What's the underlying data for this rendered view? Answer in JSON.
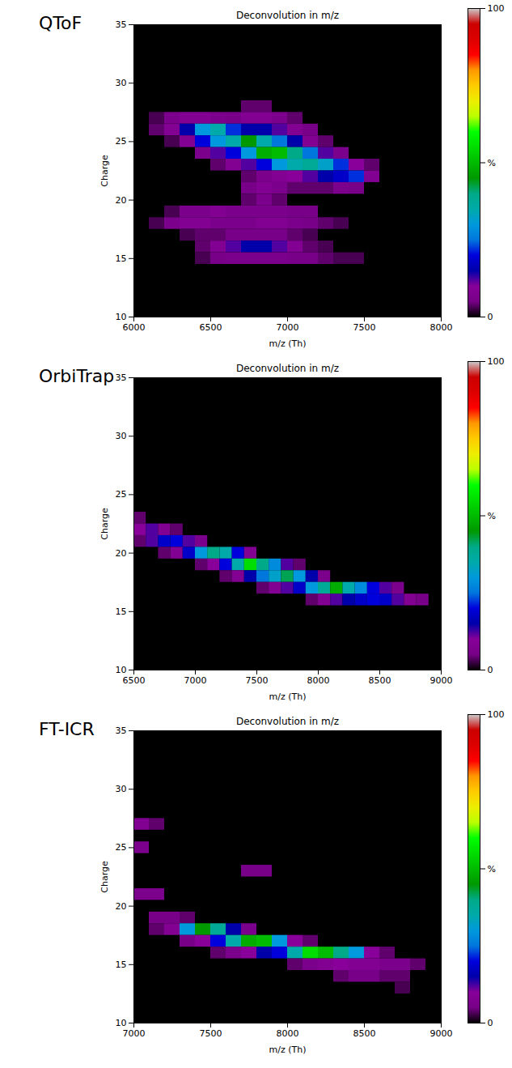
{
  "chart_data": [
    {
      "type": "heatmap",
      "panel_label": "QToF",
      "title": "Deconvolution in m/z",
      "x_label": "m/z (Th)",
      "y_label": "Charge",
      "xlim": [
        6000,
        8000
      ],
      "xticks": [
        6000,
        6500,
        7000,
        7500,
        8000
      ],
      "ylim": [
        10,
        35
      ],
      "yticks": [
        10,
        15,
        20,
        25,
        30,
        35
      ],
      "x": [
        6050,
        6150,
        6250,
        6350,
        6450,
        6550,
        6650,
        6750,
        6850,
        6950,
        7050,
        7150,
        7250,
        7350,
        7450,
        7550,
        7650,
        7750,
        7850,
        7950
      ],
      "y": [
        28,
        27,
        26,
        25,
        24,
        23,
        22,
        21,
        20,
        19,
        18,
        17,
        16,
        15
      ],
      "z": [
        [
          0,
          0,
          0,
          0,
          0,
          0,
          0,
          4,
          4,
          0,
          0,
          0,
          0,
          0,
          0,
          0,
          0,
          0,
          0,
          0
        ],
        [
          0,
          3,
          6,
          8,
          8,
          6,
          5,
          8,
          8,
          6,
          4,
          0,
          0,
          0,
          0,
          0,
          0,
          0,
          0,
          0
        ],
        [
          0,
          4,
          8,
          15,
          30,
          35,
          22,
          15,
          15,
          12,
          8,
          5,
          0,
          0,
          0,
          0,
          0,
          0,
          0,
          0
        ],
        [
          0,
          0,
          3,
          8,
          20,
          30,
          35,
          45,
          35,
          25,
          15,
          8,
          4,
          0,
          0,
          0,
          0,
          0,
          0,
          0
        ],
        [
          0,
          0,
          0,
          0,
          6,
          12,
          20,
          30,
          48,
          50,
          40,
          25,
          12,
          6,
          0,
          0,
          0,
          0,
          0,
          0
        ],
        [
          0,
          0,
          0,
          0,
          0,
          4,
          8,
          12,
          20,
          30,
          35,
          38,
          32,
          22,
          10,
          4,
          0,
          0,
          0,
          0
        ],
        [
          0,
          0,
          0,
          0,
          0,
          0,
          0,
          4,
          6,
          8,
          10,
          12,
          15,
          18,
          22,
          8,
          0,
          0,
          0,
          0
        ],
        [
          0,
          0,
          0,
          0,
          0,
          0,
          0,
          5,
          8,
          6,
          4,
          4,
          4,
          6,
          5,
          0,
          0,
          0,
          0,
          0
        ],
        [
          0,
          0,
          0,
          0,
          0,
          0,
          0,
          4,
          6,
          4,
          0,
          0,
          0,
          0,
          0,
          0,
          0,
          0,
          0,
          0
        ],
        [
          0,
          0,
          3,
          6,
          6,
          8,
          6,
          6,
          6,
          6,
          5,
          5,
          0,
          0,
          0,
          0,
          0,
          0,
          0,
          0
        ],
        [
          0,
          3,
          6,
          8,
          8,
          6,
          6,
          6,
          8,
          8,
          6,
          5,
          4,
          3,
          0,
          0,
          0,
          0,
          0,
          0
        ],
        [
          0,
          0,
          0,
          3,
          4,
          4,
          5,
          5,
          5,
          5,
          4,
          3,
          0,
          0,
          0,
          0,
          0,
          0,
          0,
          0
        ],
        [
          0,
          0,
          0,
          0,
          4,
          8,
          12,
          15,
          15,
          12,
          8,
          4,
          3,
          0,
          0,
          0,
          0,
          0,
          0,
          0
        ],
        [
          0,
          0,
          0,
          0,
          3,
          5,
          6,
          6,
          6,
          6,
          5,
          5,
          4,
          3,
          3,
          0,
          0,
          0,
          0,
          0
        ]
      ],
      "colorbar": {
        "range": [
          0,
          100
        ],
        "ticks": [
          0,
          {
            "value": 50,
            "label": "%"
          },
          100
        ]
      }
    },
    {
      "type": "heatmap",
      "panel_label": "OrbiTrap",
      "title": "Deconvolution in m/z",
      "x_label": "m/z (Th)",
      "y_label": "Charge",
      "xlim": [
        6500,
        9000
      ],
      "xticks": [
        6500,
        7000,
        7500,
        8000,
        8500,
        9000
      ],
      "ylim": [
        10,
        35
      ],
      "yticks": [
        10,
        15,
        20,
        25,
        30,
        35
      ],
      "x": [
        6550,
        6650,
        6750,
        6850,
        6950,
        7050,
        7150,
        7250,
        7350,
        7450,
        7550,
        7650,
        7750,
        7850,
        7950,
        8050,
        8150,
        8250,
        8350,
        8450,
        8550,
        8650,
        8750,
        8850,
        8950
      ],
      "y": [
        23,
        22,
        21,
        20,
        19,
        18,
        17,
        16
      ],
      "z": [
        [
          4,
          0,
          0,
          0,
          0,
          0,
          0,
          0,
          0,
          0,
          0,
          0,
          0,
          0,
          0,
          0,
          0,
          0,
          0,
          0,
          0,
          0,
          0,
          0,
          0
        ],
        [
          10,
          12,
          8,
          4,
          0,
          0,
          0,
          0,
          0,
          0,
          0,
          0,
          0,
          0,
          0,
          0,
          0,
          0,
          0,
          0,
          0,
          0,
          0,
          0,
          0
        ],
        [
          4,
          12,
          18,
          20,
          12,
          6,
          0,
          0,
          0,
          0,
          0,
          0,
          0,
          0,
          0,
          0,
          0,
          0,
          0,
          0,
          0,
          0,
          0,
          0,
          0
        ],
        [
          0,
          0,
          4,
          8,
          18,
          30,
          40,
          35,
          20,
          8,
          0,
          0,
          0,
          0,
          0,
          0,
          0,
          0,
          0,
          0,
          0,
          0,
          0,
          0,
          0
        ],
        [
          0,
          0,
          0,
          0,
          0,
          4,
          10,
          20,
          35,
          55,
          40,
          28,
          12,
          4,
          0,
          0,
          0,
          0,
          0,
          0,
          0,
          0,
          0,
          0,
          0
        ],
        [
          0,
          0,
          0,
          0,
          0,
          0,
          0,
          4,
          8,
          15,
          25,
          32,
          42,
          30,
          15,
          6,
          0,
          0,
          0,
          0,
          0,
          0,
          0,
          0,
          0
        ],
        [
          0,
          0,
          0,
          0,
          0,
          0,
          0,
          0,
          0,
          0,
          4,
          8,
          12,
          18,
          30,
          38,
          48,
          35,
          28,
          20,
          12,
          6,
          0,
          0,
          0
        ],
        [
          0,
          0,
          0,
          0,
          0,
          0,
          0,
          0,
          0,
          0,
          0,
          0,
          0,
          0,
          4,
          8,
          12,
          15,
          18,
          20,
          18,
          12,
          8,
          5,
          0
        ]
      ],
      "colorbar": {
        "range": [
          0,
          100
        ],
        "ticks": [
          0,
          {
            "value": 50,
            "label": "%"
          },
          100
        ]
      }
    },
    {
      "type": "heatmap",
      "panel_label": "FT-ICR",
      "title": "Deconvolution in m/z",
      "x_label": "m/z (Th)",
      "y_label": "Charge",
      "xlim": [
        7000,
        9000
      ],
      "xticks": [
        7000,
        7500,
        8000,
        8500,
        9000
      ],
      "ylim": [
        10,
        35
      ],
      "yticks": [
        10,
        15,
        20,
        25,
        30,
        35
      ],
      "x": [
        7050,
        7150,
        7250,
        7350,
        7450,
        7550,
        7650,
        7750,
        7850,
        7950,
        8050,
        8150,
        8250,
        8350,
        8450,
        8550,
        8650,
        8750,
        8850,
        8950
      ],
      "y": [
        27,
        25,
        23,
        21,
        19,
        18,
        17,
        16,
        15,
        14,
        13
      ],
      "z": [
        [
          8,
          4,
          0,
          0,
          0,
          0,
          0,
          0,
          0,
          0,
          0,
          0,
          0,
          0,
          0,
          0,
          0,
          0,
          0,
          0
        ],
        [
          6,
          0,
          0,
          0,
          0,
          0,
          0,
          0,
          0,
          0,
          0,
          0,
          0,
          0,
          0,
          0,
          0,
          0,
          0,
          0
        ],
        [
          0,
          0,
          0,
          0,
          0,
          0,
          0,
          5,
          5,
          0,
          0,
          0,
          0,
          0,
          0,
          0,
          0,
          0,
          0,
          0
        ],
        [
          6,
          6,
          0,
          0,
          0,
          0,
          0,
          0,
          0,
          0,
          0,
          0,
          0,
          0,
          0,
          0,
          0,
          0,
          0,
          0
        ],
        [
          0,
          5,
          5,
          4,
          0,
          0,
          0,
          0,
          0,
          0,
          0,
          0,
          0,
          0,
          0,
          0,
          0,
          0,
          0,
          0
        ],
        [
          0,
          4,
          8,
          30,
          45,
          38,
          15,
          6,
          0,
          0,
          0,
          0,
          0,
          0,
          0,
          0,
          0,
          0,
          0,
          0
        ],
        [
          0,
          0,
          0,
          5,
          10,
          20,
          35,
          48,
          50,
          30,
          10,
          4,
          0,
          0,
          0,
          0,
          0,
          0,
          0,
          0
        ],
        [
          0,
          0,
          0,
          0,
          0,
          4,
          6,
          10,
          15,
          20,
          35,
          55,
          50,
          40,
          30,
          10,
          4,
          0,
          0,
          0
        ],
        [
          0,
          0,
          0,
          0,
          0,
          0,
          0,
          0,
          0,
          0,
          4,
          6,
          8,
          10,
          8,
          8,
          6,
          6,
          4,
          0
        ],
        [
          0,
          0,
          0,
          0,
          0,
          0,
          0,
          0,
          0,
          0,
          0,
          0,
          0,
          4,
          5,
          5,
          4,
          4,
          0,
          0
        ],
        [
          0,
          0,
          0,
          0,
          0,
          0,
          0,
          0,
          0,
          0,
          0,
          0,
          0,
          0,
          0,
          0,
          0,
          3,
          0,
          0
        ]
      ],
      "colorbar": {
        "range": [
          0,
          100
        ],
        "ticks": [
          0,
          {
            "value": 50,
            "label": "%"
          },
          100
        ]
      }
    }
  ]
}
